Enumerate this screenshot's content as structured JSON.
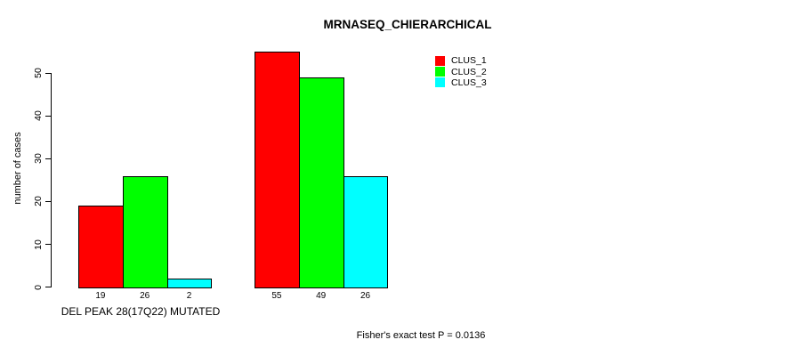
{
  "chart_data": {
    "type": "bar",
    "title": "MRNASEQ_CHIERARCHICAL",
    "ylabel": "number of cases",
    "xlabel": "",
    "ylim": [
      0,
      57
    ],
    "yticks": [
      0,
      10,
      20,
      30,
      40,
      50
    ],
    "grid": false,
    "legend_position": "top-right-inside",
    "categories": [
      "DEL PEAK 28(17Q22) MUTATED",
      ""
    ],
    "series": [
      {
        "name": "CLUS_1",
        "color": "#ff0000",
        "values": [
          19,
          55
        ]
      },
      {
        "name": "CLUS_2",
        "color": "#00ff00",
        "values": [
          26,
          49
        ]
      },
      {
        "name": "CLUS_3",
        "color": "#00ffff",
        "values": [
          2,
          26
        ]
      }
    ],
    "bar_value_labels": [
      [
        19,
        26,
        2
      ],
      [
        55,
        49,
        26
      ]
    ],
    "annotation": "Fisher's exact test P = 0.0136"
  },
  "colors": {
    "bar_border": "#000000",
    "axis": "#000000",
    "background": "#ffffff"
  }
}
